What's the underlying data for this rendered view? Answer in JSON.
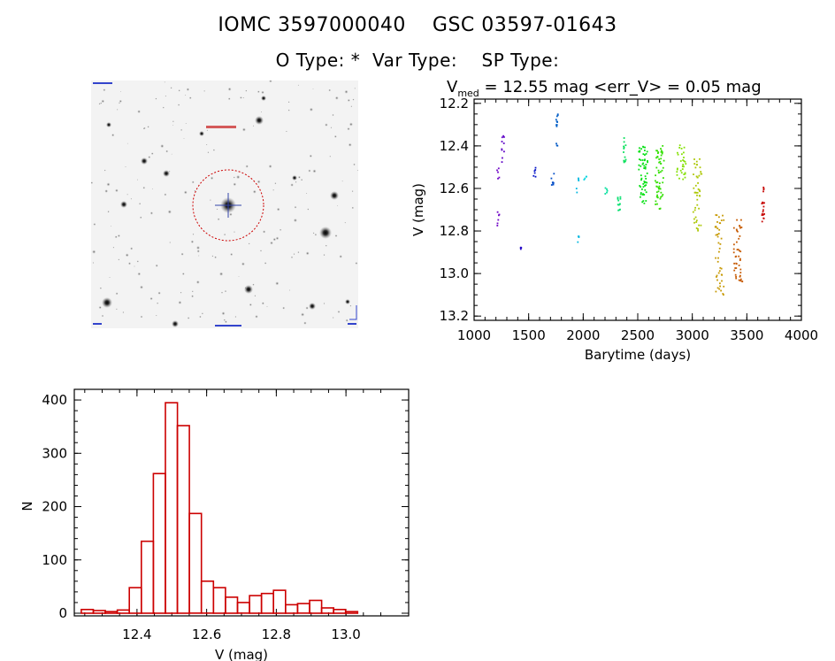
{
  "header": {
    "title_line1": "IOMC 3597000040    GSC 03597-01643",
    "title_line2": "O Type: *  Var Type:    SP Type:"
  },
  "finder_chart": {
    "marker_color": "#cc0000",
    "label_color": "#2222cc"
  },
  "chart_data": [
    {
      "type": "scatter",
      "title_prefix": "V",
      "title_subscript": "med",
      "title_rest": " = 12.55 mag <err_V> = 0.05 mag",
      "xlabel": "Barytime (days)",
      "ylabel": "V (mag)",
      "xlim": [
        1000,
        4000
      ],
      "ylim": [
        13.22,
        12.18
      ],
      "y_inverted": true,
      "xticks": [
        1000,
        1500,
        2000,
        2500,
        3000,
        3500,
        4000
      ],
      "yticks": [
        12.2,
        12.4,
        12.6,
        12.8,
        13.0,
        13.2
      ],
      "ytick_labels": [
        "12.2",
        "12.4",
        "12.6",
        "12.8",
        "13.0",
        "13.2"
      ],
      "color_scale": "rainbow by time (purple → red)",
      "clusters": [
        {
          "x": 1220,
          "y_min": 12.5,
          "y_max": 12.56,
          "n": 5
        },
        {
          "x": 1222,
          "y_min": 12.7,
          "y_max": 12.78,
          "n": 6
        },
        {
          "x": 1265,
          "y_min": 12.34,
          "y_max": 12.48,
          "n": 10
        },
        {
          "x": 1430,
          "y_min": 12.87,
          "y_max": 12.89,
          "n": 4
        },
        {
          "x": 1555,
          "y_min": 12.5,
          "y_max": 12.55,
          "n": 6
        },
        {
          "x": 1720,
          "y_min": 12.53,
          "y_max": 12.62,
          "n": 8
        },
        {
          "x": 1760,
          "y_min": 12.25,
          "y_max": 12.31,
          "n": 10
        },
        {
          "x": 1755,
          "y_min": 12.38,
          "y_max": 12.41,
          "n": 3
        },
        {
          "x": 1950,
          "y_min": 12.55,
          "y_max": 12.65,
          "n": 5
        },
        {
          "x": 1952,
          "y_min": 12.82,
          "y_max": 12.88,
          "n": 4
        },
        {
          "x": 2020,
          "y_min": 12.54,
          "y_max": 12.58,
          "n": 4
        },
        {
          "x": 2210,
          "y_min": 12.58,
          "y_max": 12.63,
          "n": 5
        },
        {
          "x": 2330,
          "y_min": 12.64,
          "y_max": 12.72,
          "n": 12
        },
        {
          "x": 2380,
          "y_min": 12.36,
          "y_max": 12.48,
          "n": 12
        },
        {
          "x": 2550,
          "y_min": 12.4,
          "y_max": 12.67,
          "n": 60
        },
        {
          "x": 2700,
          "y_min": 12.39,
          "y_max": 12.7,
          "n": 60
        },
        {
          "x": 2900,
          "y_min": 12.39,
          "y_max": 12.56,
          "n": 30
        },
        {
          "x": 3050,
          "y_min": 12.45,
          "y_max": 12.8,
          "n": 45
        },
        {
          "x": 3250,
          "y_min": 12.72,
          "y_max": 13.1,
          "n": 45
        },
        {
          "x": 3420,
          "y_min": 12.74,
          "y_max": 13.04,
          "n": 45
        },
        {
          "x": 3650,
          "y_min": 12.58,
          "y_max": 12.76,
          "n": 20
        }
      ]
    },
    {
      "type": "bar",
      "subtype": "histogram",
      "xlabel": "V (mag)",
      "ylabel": "N",
      "xlim": [
        12.22,
        13.18
      ],
      "ylim": [
        -5,
        420
      ],
      "xticks": [
        12.4,
        12.6,
        12.8,
        13.0
      ],
      "xtick_labels": [
        "12.4",
        "12.6",
        "12.8",
        "13.0"
      ],
      "yticks": [
        0,
        100,
        200,
        300,
        400
      ],
      "bin_width": 0.0345,
      "bin_start": 12.24,
      "values": [
        7,
        5,
        3,
        6,
        48,
        135,
        262,
        395,
        352,
        187,
        60,
        48,
        30,
        20,
        33,
        37,
        43,
        16,
        18,
        24,
        10,
        7,
        3
      ],
      "color": "#cc0000"
    }
  ]
}
